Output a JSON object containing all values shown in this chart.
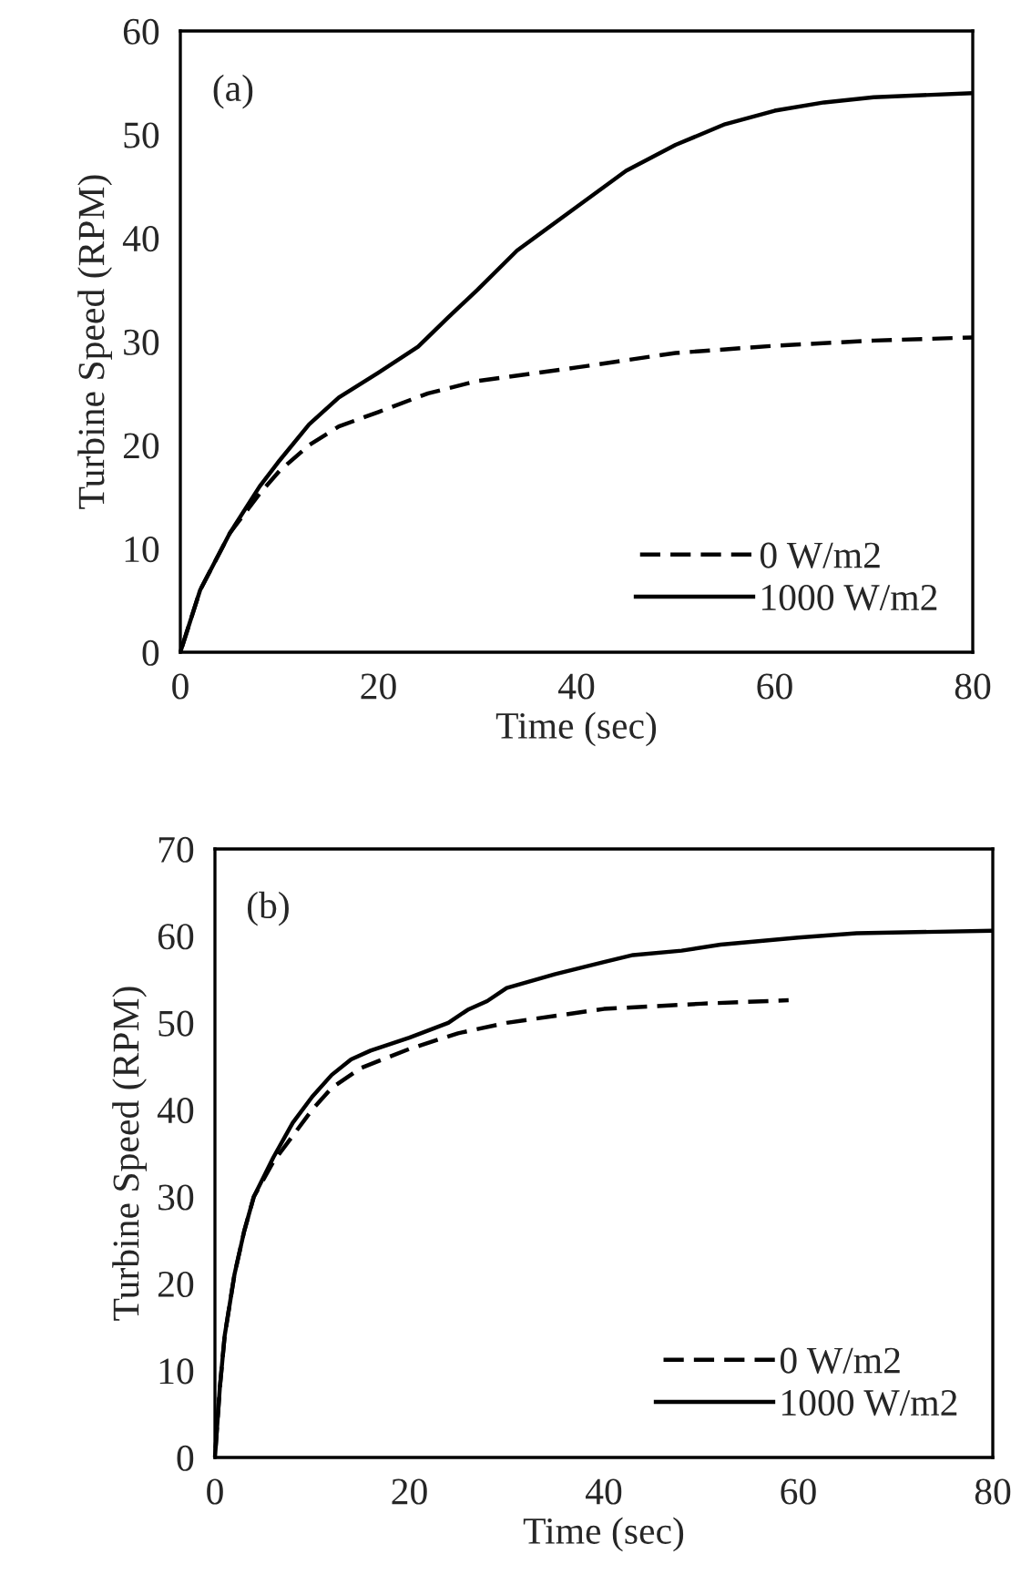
{
  "chart_data": [
    {
      "type": "line",
      "xlabel": "Time (sec)",
      "ylabel": "Turbine Speed (RPM)",
      "annotations": [
        "(a)"
      ],
      "xlim": [
        0,
        80
      ],
      "xticks": [
        0,
        20,
        40,
        60,
        80
      ],
      "ylim": [
        0,
        60
      ],
      "yticks": [
        0,
        10,
        20,
        30,
        40,
        50,
        60
      ],
      "grid": false,
      "legend": "bottom right",
      "series": [
        {
          "name": "0 W/m2",
          "color": "#000000",
          "line_style": "dashed",
          "x": [
            0,
            2,
            5,
            8,
            10,
            13,
            16,
            20,
            25,
            30,
            40,
            50,
            60,
            70,
            80
          ],
          "values": [
            0,
            6,
            11.5,
            15.3,
            17.5,
            20,
            21.8,
            23.2,
            25,
            26.2,
            27.5,
            28.9,
            29.6,
            30.1,
            30.4
          ]
        },
        {
          "name": "1000 W/m2",
          "color": "#000000",
          "line_style": "solid",
          "x": [
            0,
            2,
            5,
            8,
            10,
            13,
            16,
            20,
            24,
            27,
            30,
            34,
            40,
            45,
            50,
            55,
            60,
            65,
            70,
            80
          ],
          "values": [
            0,
            6,
            11.5,
            16,
            18.5,
            22,
            24.6,
            27,
            29.5,
            32.3,
            35,
            38.8,
            43,
            46.5,
            49,
            51,
            52.3,
            53.1,
            53.6,
            54
          ]
        }
      ]
    },
    {
      "type": "line",
      "xlabel": "Time (sec)",
      "ylabel": "Turbine Speed (RPM)",
      "annotations": [
        "(b)"
      ],
      "xlim": [
        0,
        80
      ],
      "xticks": [
        0,
        20,
        40,
        60,
        80
      ],
      "ylim": [
        0,
        70
      ],
      "yticks": [
        0,
        10,
        20,
        30,
        40,
        50,
        60,
        70
      ],
      "grid": false,
      "legend": "bottom right",
      "series": [
        {
          "name": "0 W/m2",
          "color": "#000000",
          "line_style": "dashed",
          "x": [
            0,
            0.5,
            1,
            2,
            3,
            4,
            6,
            8,
            10,
            12,
            15,
            20,
            25,
            30,
            40,
            50,
            59
          ],
          "values": [
            0,
            8,
            14,
            21,
            26,
            30,
            34,
            37,
            40,
            42.5,
            44.8,
            47,
            48.8,
            50,
            51.6,
            52.2,
            52.6
          ]
        },
        {
          "name": "1000 W/m2",
          "color": "#000000",
          "line_style": "solid",
          "x": [
            0,
            0.5,
            1,
            2,
            3,
            4,
            6,
            8,
            10,
            12,
            14,
            16,
            20,
            24,
            26,
            28,
            30,
            35,
            40,
            43,
            48,
            52,
            60,
            66,
            80
          ],
          "values": [
            0,
            8,
            14,
            21,
            26,
            30,
            34.5,
            38.5,
            41.5,
            44,
            45.8,
            46.8,
            48.3,
            50,
            51.5,
            52.5,
            54,
            55.6,
            57,
            57.8,
            58.3,
            59,
            59.8,
            60.3,
            60.6
          ]
        }
      ]
    }
  ]
}
